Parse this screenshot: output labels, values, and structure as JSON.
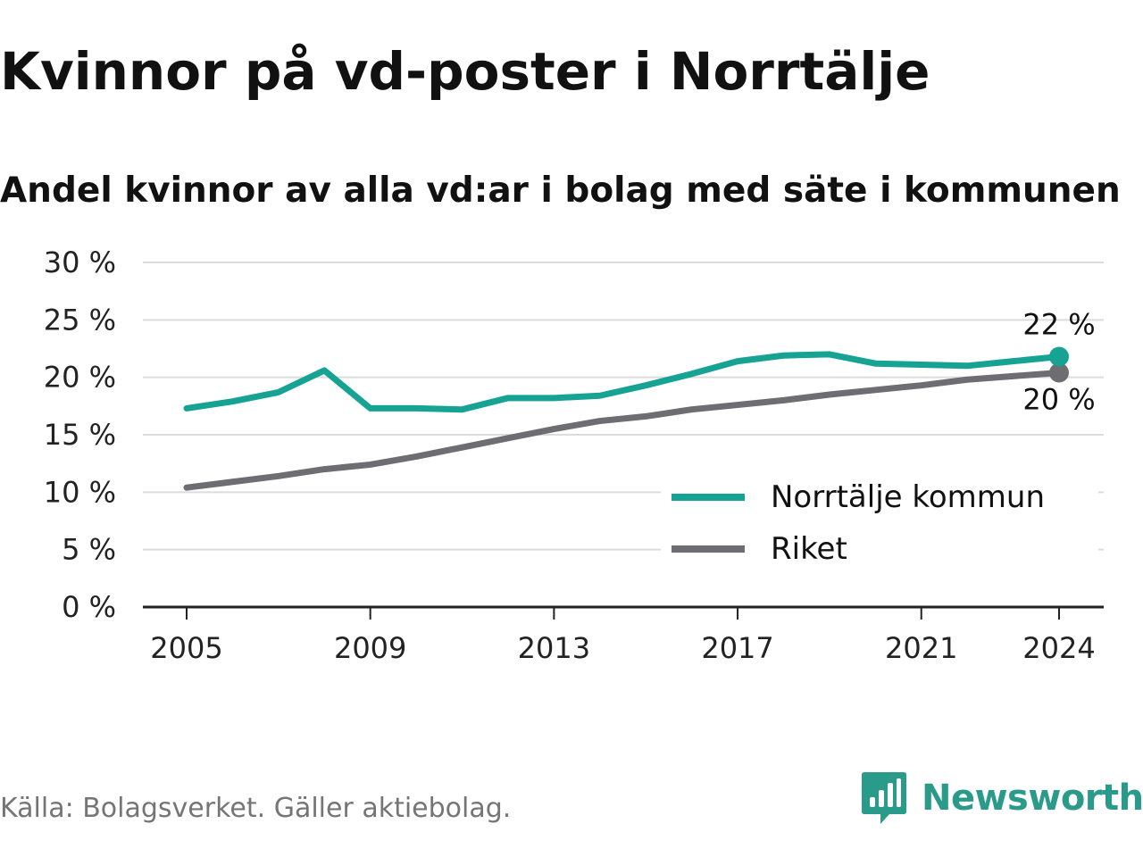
{
  "title": "Kvinnor på vd-poster i Norrtälje",
  "subtitle": "Andel kvinnor av alla vd:ar i bolag med säte i kommunen",
  "source": "Källa: Bolagsverket. Gäller aktiebolag.",
  "brand": {
    "name": "Newsworthy",
    "icon": "newsworthy-logo-icon",
    "color": "#2a9a8a"
  },
  "chart_data": {
    "type": "line",
    "x": [
      2005,
      2006,
      2007,
      2008,
      2009,
      2010,
      2011,
      2012,
      2013,
      2014,
      2015,
      2016,
      2017,
      2018,
      2019,
      2020,
      2021,
      2022,
      2023,
      2024
    ],
    "series": [
      {
        "name": "Norrtälje kommun",
        "color": "#16a394",
        "values": [
          17.3,
          17.9,
          18.7,
          20.6,
          17.3,
          17.3,
          17.2,
          18.2,
          18.2,
          18.4,
          19.3,
          20.3,
          21.4,
          21.9,
          22.0,
          21.2,
          21.1,
          21.0,
          21.4,
          21.8
        ],
        "end_label": "22 %"
      },
      {
        "name": "Riket",
        "color": "#6d6d72",
        "values": [
          10.4,
          10.9,
          11.4,
          12.0,
          12.4,
          13.1,
          13.9,
          14.7,
          15.5,
          16.2,
          16.6,
          17.2,
          17.6,
          18.0,
          18.5,
          18.9,
          19.3,
          19.8,
          20.1,
          20.4
        ],
        "end_label": "20 %"
      }
    ],
    "x_ticks": [
      2005,
      2009,
      2013,
      2017,
      2021,
      2024
    ],
    "x_tick_labels": [
      "2005",
      "2009",
      "2013",
      "2017",
      "2021",
      "2024"
    ],
    "y_ticks": [
      0,
      5,
      10,
      15,
      20,
      25,
      30
    ],
    "y_tick_labels": [
      "0 %",
      "5 %",
      "10 %",
      "15 %",
      "20 %",
      "25 %",
      "30 %"
    ],
    "ylim": [
      0,
      30
    ],
    "xlim": [
      2005,
      2024
    ],
    "grid": "horizontal",
    "legend_position": "bottom-right",
    "title": "Kvinnor på vd-poster i Norrtälje",
    "subtitle": "Andel kvinnor av alla vd:ar i bolag med säte i kommunen",
    "xlabel": "",
    "ylabel": ""
  }
}
